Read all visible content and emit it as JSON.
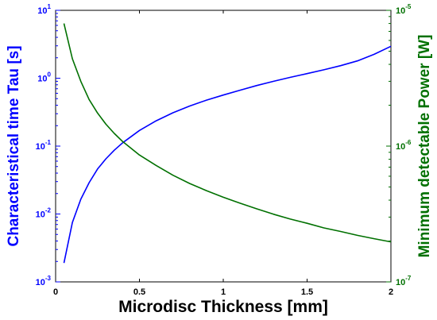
{
  "chart_data": {
    "type": "line",
    "xlabel": "Microdisc Thickness [mm]",
    "xlim": [
      0,
      2
    ],
    "x_ticks": [
      {
        "value": 0,
        "label": "0"
      },
      {
        "value": 0.5,
        "label": "0.5"
      },
      {
        "value": 1,
        "label": "1"
      },
      {
        "value": 1.5,
        "label": "1.5"
      },
      {
        "value": 2,
        "label": "2"
      }
    ],
    "left_axis": {
      "label": "Characteristical time Tau [s]",
      "scale": "log",
      "ylim": [
        0.001,
        10
      ],
      "color": "#0000ff",
      "ticks": [
        {
          "value": 0.001,
          "base": "10",
          "exp": "-3"
        },
        {
          "value": 0.01,
          "base": "10",
          "exp": "-2"
        },
        {
          "value": 0.1,
          "base": "10",
          "exp": "-1"
        },
        {
          "value": 1,
          "base": "10",
          "exp": "0"
        },
        {
          "value": 10,
          "base": "10",
          "exp": "1"
        }
      ]
    },
    "right_axis": {
      "label": "Minimum detectable Power [W]",
      "scale": "log",
      "ylim": [
        1e-07,
        1e-05
      ],
      "color": "#007000",
      "ticks": [
        {
          "value": 1e-07,
          "base": "10",
          "exp": "-7"
        },
        {
          "value": 1e-06,
          "base": "10",
          "exp": "-6"
        },
        {
          "value": 1e-05,
          "base": "10",
          "exp": "-5"
        }
      ]
    },
    "series": [
      {
        "axis": "left",
        "color": "#0000ff",
        "x": [
          0.05,
          0.1,
          0.15,
          0.2,
          0.25,
          0.3,
          0.35,
          0.4,
          0.5,
          0.6,
          0.7,
          0.8,
          0.9,
          1.0,
          1.1,
          1.2,
          1.3,
          1.4,
          1.5,
          1.6,
          1.7,
          1.8,
          1.9,
          2.0
        ],
        "y": [
          0.0019,
          0.0075,
          0.0165,
          0.029,
          0.046,
          0.065,
          0.087,
          0.112,
          0.17,
          0.236,
          0.31,
          0.39,
          0.475,
          0.565,
          0.665,
          0.78,
          0.9,
          1.03,
          1.17,
          1.33,
          1.53,
          1.8,
          2.25,
          2.95
        ]
      },
      {
        "axis": "right",
        "color": "#007000",
        "x": [
          0.05,
          0.1,
          0.15,
          0.2,
          0.25,
          0.3,
          0.35,
          0.4,
          0.5,
          0.6,
          0.7,
          0.8,
          0.9,
          1.0,
          1.1,
          1.2,
          1.3,
          1.4,
          1.5,
          1.6,
          1.7,
          1.8,
          1.9,
          2.0
        ],
        "y": [
          8e-06,
          4.4e-06,
          3e-06,
          2.2e-06,
          1.75e-06,
          1.45e-06,
          1.24e-06,
          1.08e-06,
          8.6e-07,
          7.2e-07,
          6.1e-07,
          5.3e-07,
          4.7e-07,
          4.2e-07,
          3.8e-07,
          3.45e-07,
          3.15e-07,
          2.9e-07,
          2.7e-07,
          2.5e-07,
          2.35e-07,
          2.2e-07,
          2.08e-07,
          1.97e-07
        ]
      }
    ]
  }
}
